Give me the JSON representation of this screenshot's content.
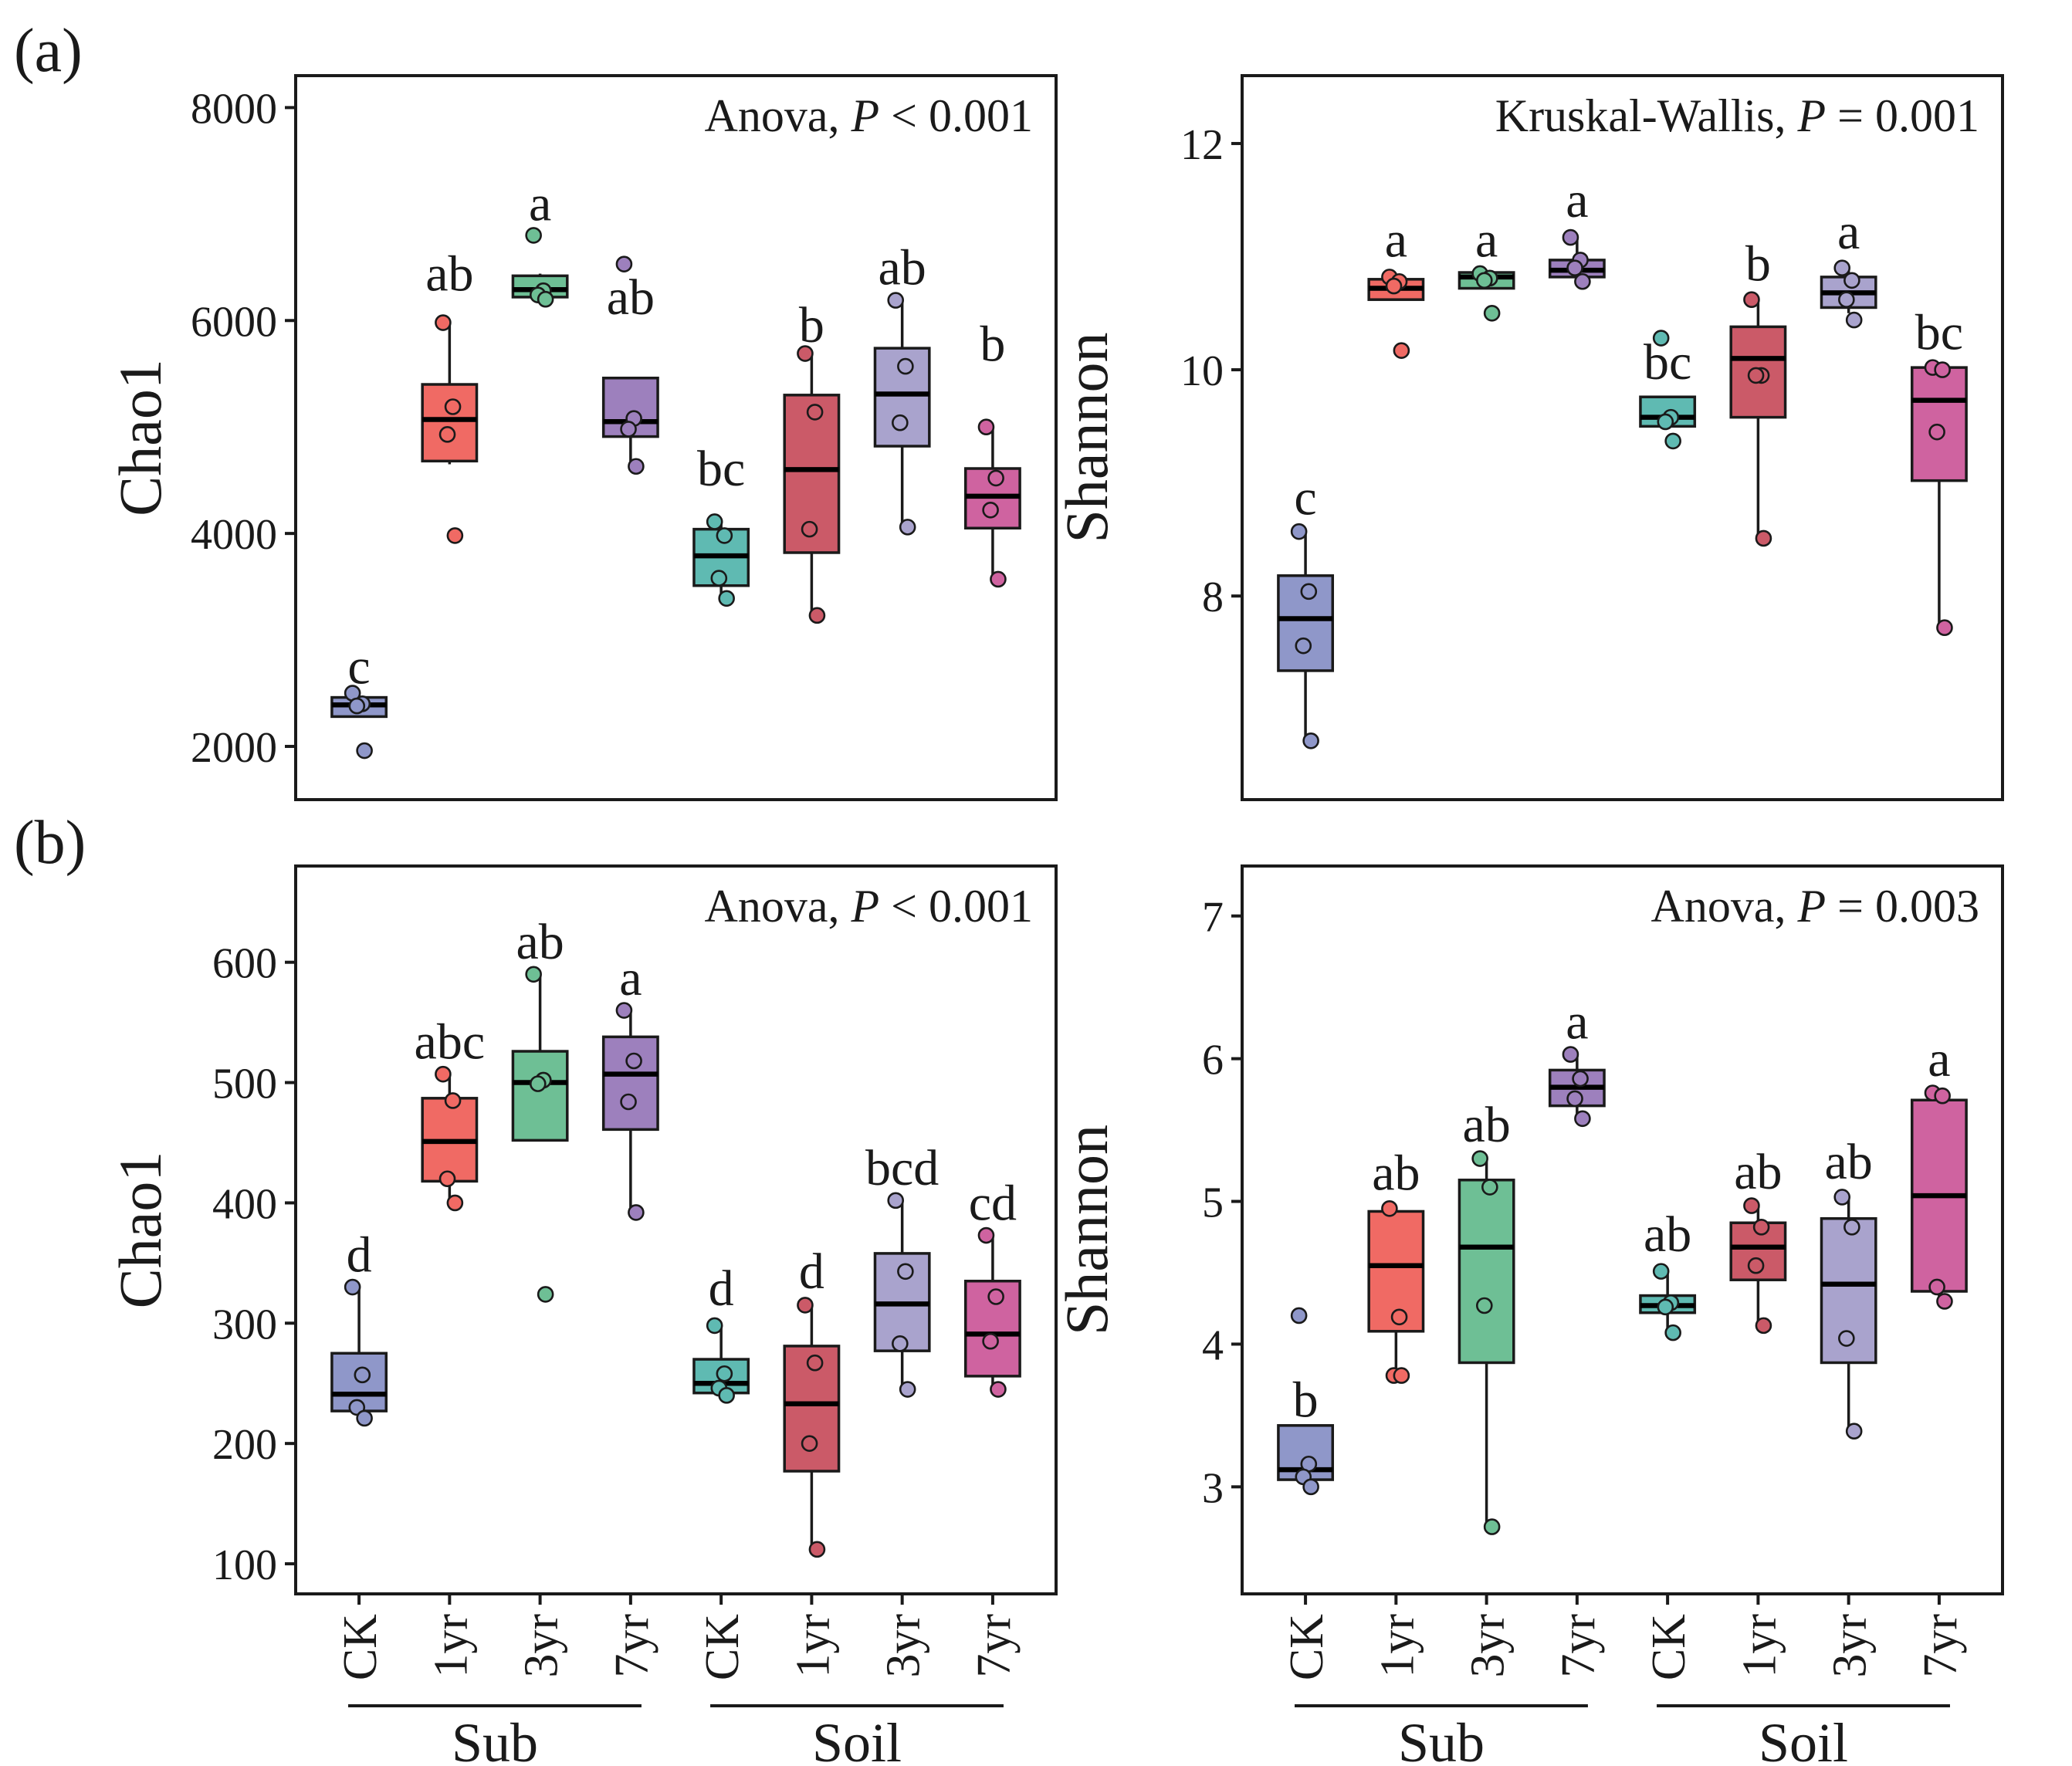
{
  "figure_labels": {
    "a": "(a)",
    "b": "(b)"
  },
  "group_labels": {
    "sub": "Sub",
    "soil": "Soil"
  },
  "colors": {
    "CK_sub": "#8f97c9",
    "1yr_sub": "#f06a64",
    "3yr_sub": "#6ebf95",
    "7yr_sub": "#9d80bd",
    "CK_soil": "#5fbab2",
    "1yr_soil": "#cb5a68",
    "3yr_soil": "#a9a3cd",
    "7yr_soil": "#cf63a0"
  },
  "chart_data": [
    {
      "id": "a-chao1",
      "type": "box",
      "ylabel": "Chao1",
      "ylim": [
        1500,
        8300
      ],
      "yticks": [
        2000,
        4000,
        6000,
        8000
      ],
      "stat_prefix": "Anova, ",
      "stat_p": "P",
      "stat_suffix": " < 0.001",
      "show_xlabels": false,
      "categories": [
        "CK",
        "1yr",
        "3yr",
        "7yr",
        "CK",
        "1yr",
        "3yr",
        "7yr"
      ],
      "groups": [
        "Sub",
        "Sub",
        "Sub",
        "Sub",
        "Soil",
        "Soil",
        "Soil",
        "Soil"
      ],
      "color_keys": [
        "CK_sub",
        "1yr_sub",
        "3yr_sub",
        "7yr_sub",
        "CK_soil",
        "1yr_soil",
        "3yr_soil",
        "7yr_soil"
      ],
      "boxes": [
        {
          "min": 2280,
          "q1": 2280,
          "median": 2390,
          "q3": 2460,
          "max": 2500
        },
        {
          "min": 4650,
          "q1": 4680,
          "median": 5070,
          "q3": 5400,
          "max": 5990
        },
        {
          "min": 6200,
          "q1": 6220,
          "median": 6290,
          "q3": 6420,
          "max": 6440
        },
        {
          "min": 4630,
          "q1": 4910,
          "median": 5050,
          "q3": 5460,
          "max": 5460
        },
        {
          "min": 3390,
          "q1": 3510,
          "median": 3790,
          "q3": 4040,
          "max": 4110
        },
        {
          "min": 3230,
          "q1": 3820,
          "median": 4600,
          "q3": 5300,
          "max": 5690
        },
        {
          "min": 4060,
          "q1": 4820,
          "median": 5310,
          "q3": 5740,
          "max": 6190
        },
        {
          "min": 3570,
          "q1": 4050,
          "median": 4350,
          "q3": 4610,
          "max": 5000
        }
      ],
      "points": [
        [
          2500,
          2400,
          2380,
          1960
        ],
        [
          5980,
          5190,
          4930,
          3980
        ],
        [
          6800,
          6280,
          6240,
          6200
        ],
        [
          6530,
          5080,
          4980,
          4630
        ],
        [
          4110,
          3980,
          3580,
          3390
        ],
        [
          5690,
          5140,
          4040,
          3230
        ],
        [
          6190,
          5570,
          5040,
          4060
        ],
        [
          5000,
          4520,
          4220,
          3570
        ]
      ],
      "letters": [
        "c",
        "ab",
        "a",
        "ab",
        "bc",
        "b",
        "ab",
        "b"
      ],
      "letter_y": [
        2590,
        6280,
        6940,
        6060,
        4450,
        5800,
        6340,
        5620
      ]
    },
    {
      "id": "a-shannon",
      "type": "box",
      "ylabel": "Shannon",
      "ylim": [
        6.2,
        12.6
      ],
      "yticks": [
        8,
        10,
        12
      ],
      "stat_prefix": "Kruskal-Wallis, ",
      "stat_p": "P",
      "stat_suffix": " = 0.001",
      "show_xlabels": false,
      "categories": [
        "CK",
        "1yr",
        "3yr",
        "7yr",
        "CK",
        "1yr",
        "3yr",
        "7yr"
      ],
      "groups": [
        "Sub",
        "Sub",
        "Sub",
        "Sub",
        "Soil",
        "Soil",
        "Soil",
        "Soil"
      ],
      "color_keys": [
        "CK_sub",
        "1yr_sub",
        "3yr_sub",
        "7yr_sub",
        "CK_soil",
        "1yr_soil",
        "3yr_soil",
        "7yr_soil"
      ],
      "boxes": [
        {
          "min": 6.72,
          "q1": 7.34,
          "median": 7.8,
          "q3": 8.18,
          "max": 8.57
        },
        {
          "min": 10.62,
          "q1": 10.62,
          "median": 10.72,
          "q3": 10.8,
          "max": 10.82
        },
        {
          "min": 10.72,
          "q1": 10.72,
          "median": 10.82,
          "q3": 10.86,
          "max": 10.86
        },
        {
          "min": 10.82,
          "q1": 10.82,
          "median": 10.88,
          "q3": 10.97,
          "max": 11.17
        },
        {
          "min": 9.5,
          "q1": 9.5,
          "median": 9.58,
          "q3": 9.76,
          "max": 9.76
        },
        {
          "min": 8.51,
          "q1": 9.58,
          "median": 10.1,
          "q3": 10.38,
          "max": 10.62
        },
        {
          "min": 10.5,
          "q1": 10.55,
          "median": 10.68,
          "q3": 10.82,
          "max": 10.9
        },
        {
          "min": 7.72,
          "q1": 9.02,
          "median": 9.73,
          "q3": 10.02,
          "max": 10.02
        }
      ],
      "points": [
        [
          8.57,
          8.04,
          7.56,
          6.72
        ],
        [
          10.82,
          10.78,
          10.74,
          10.17
        ],
        [
          10.85,
          10.81,
          10.79,
          10.5
        ],
        [
          11.17,
          10.97,
          10.9,
          10.78
        ],
        [
          10.28,
          9.58,
          9.54,
          9.37
        ],
        [
          10.62,
          9.95,
          9.95,
          8.51
        ],
        [
          10.9,
          10.79,
          10.62,
          10.44
        ],
        [
          10.02,
          10.0,
          9.45,
          7.72
        ]
      ],
      "letters": [
        "c",
        "a",
        "a",
        "a",
        "bc",
        "b",
        "a",
        "bc"
      ],
      "letter_y": [
        8.72,
        11.0,
        11.0,
        11.35,
        9.92,
        10.79,
        11.07,
        10.18
      ]
    },
    {
      "id": "b-chao1",
      "type": "box",
      "ylabel": "Chao1",
      "ylim": [
        75,
        680
      ],
      "yticks": [
        100,
        200,
        300,
        400,
        500,
        600
      ],
      "stat_prefix": "Anova, ",
      "stat_p": "P",
      "stat_suffix": " < 0.001",
      "show_xlabels": true,
      "categories": [
        "CK",
        "1yr",
        "3yr",
        "7yr",
        "CK",
        "1yr",
        "3yr",
        "7yr"
      ],
      "groups": [
        "Sub",
        "Sub",
        "Sub",
        "Sub",
        "Soil",
        "Soil",
        "Soil",
        "Soil"
      ],
      "color_keys": [
        "CK_sub",
        "1yr_sub",
        "3yr_sub",
        "7yr_sub",
        "CK_soil",
        "1yr_soil",
        "3yr_soil",
        "7yr_soil"
      ],
      "boxes": [
        {
          "min": 225,
          "q1": 227,
          "median": 241,
          "q3": 275,
          "max": 330
        },
        {
          "min": 400,
          "q1": 418,
          "median": 451,
          "q3": 487,
          "max": 507
        },
        {
          "min": 452,
          "q1": 452,
          "median": 500,
          "q3": 526,
          "max": 590
        },
        {
          "min": 392,
          "q1": 461,
          "median": 507,
          "q3": 538,
          "max": 560
        },
        {
          "min": 240,
          "q1": 242,
          "median": 250,
          "q3": 270,
          "max": 298
        },
        {
          "min": 112,
          "q1": 177,
          "median": 233,
          "q3": 281,
          "max": 315
        },
        {
          "min": 245,
          "q1": 277,
          "median": 316,
          "q3": 358,
          "max": 402
        },
        {
          "min": 244,
          "q1": 256,
          "median": 291,
          "q3": 335,
          "max": 373
        }
      ],
      "points": [
        [
          330,
          257,
          230,
          221
        ],
        [
          507,
          485,
          420,
          400
        ],
        [
          590,
          502,
          499,
          324
        ],
        [
          560,
          518,
          484,
          392
        ],
        [
          298,
          258,
          246,
          240
        ],
        [
          315,
          267,
          200,
          112
        ],
        [
          402,
          343,
          283,
          245
        ],
        [
          373,
          322,
          285,
          245
        ]
      ],
      "letters": [
        "d",
        "abc",
        "ab",
        "a",
        "d",
        "d",
        "bcd",
        "cd"
      ],
      "letter_y": [
        343,
        520,
        603,
        573,
        315,
        329,
        415,
        386
      ]
    },
    {
      "id": "b-shannon",
      "type": "box",
      "ylabel": "Shannon",
      "ylim": [
        2.25,
        7.35
      ],
      "yticks": [
        3,
        4,
        5,
        6,
        7
      ],
      "stat_prefix": "Anova, ",
      "stat_p": "P",
      "stat_suffix": " = 0.003",
      "show_xlabels": true,
      "categories": [
        "CK",
        "1yr",
        "3yr",
        "7yr",
        "CK",
        "1yr",
        "3yr",
        "7yr"
      ],
      "groups": [
        "Sub",
        "Sub",
        "Sub",
        "Sub",
        "Soil",
        "Soil",
        "Soil",
        "Soil"
      ],
      "color_keys": [
        "CK_sub",
        "1yr_sub",
        "3yr_sub",
        "7yr_sub",
        "CK_soil",
        "1yr_soil",
        "3yr_soil",
        "7yr_soil"
      ],
      "boxes": [
        {
          "min": 3.0,
          "q1": 3.05,
          "median": 3.12,
          "q3": 3.43,
          "max": 3.43
        },
        {
          "min": 3.78,
          "q1": 4.09,
          "median": 4.55,
          "q3": 4.93,
          "max": 4.95
        },
        {
          "min": 2.72,
          "q1": 3.87,
          "median": 4.68,
          "q3": 5.15,
          "max": 5.3
        },
        {
          "min": 5.58,
          "q1": 5.67,
          "median": 5.8,
          "q3": 5.92,
          "max": 6.03
        },
        {
          "min": 4.08,
          "q1": 4.22,
          "median": 4.27,
          "q3": 4.34,
          "max": 4.51
        },
        {
          "min": 4.13,
          "q1": 4.45,
          "median": 4.68,
          "q3": 4.85,
          "max": 4.97
        },
        {
          "min": 3.39,
          "q1": 3.87,
          "median": 4.42,
          "q3": 4.88,
          "max": 5.03
        },
        {
          "min": 4.3,
          "q1": 4.37,
          "median": 5.04,
          "q3": 5.71,
          "max": 5.76
        }
      ],
      "points": [
        [
          4.2,
          3.16,
          3.07,
          3.0
        ],
        [
          4.95,
          4.19,
          3.78,
          3.78
        ],
        [
          5.3,
          5.1,
          4.27,
          2.72
        ],
        [
          6.03,
          5.86,
          5.72,
          5.58
        ],
        [
          4.51,
          4.29,
          4.26,
          4.08
        ],
        [
          4.97,
          4.82,
          4.55,
          4.13
        ],
        [
          5.03,
          4.82,
          4.04,
          3.39
        ],
        [
          5.76,
          5.74,
          4.4,
          4.3
        ]
      ],
      "letters": [
        "b",
        "ab",
        "ab",
        "a",
        "ab",
        "ab",
        "ab",
        "a"
      ],
      "letter_y": [
        3.49,
        5.08,
        5.42,
        6.14,
        4.65,
        5.09,
        5.16,
        5.88
      ]
    }
  ]
}
